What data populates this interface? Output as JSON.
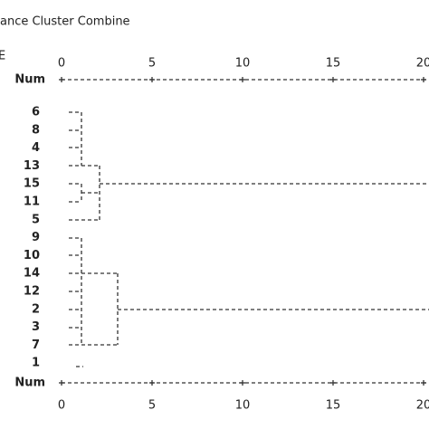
{
  "header": {
    "title": "ance Cluster Combine",
    "fragment": "E"
  },
  "scale": {
    "label": "Num",
    "ticks": [
      "0",
      "5",
      "10",
      "15",
      "20"
    ]
  },
  "rows": [
    "6",
    "8",
    "4",
    "13",
    "15",
    "11",
    "5",
    "9",
    "10",
    "14",
    "12",
    "2",
    "3",
    "7",
    "1"
  ]
}
